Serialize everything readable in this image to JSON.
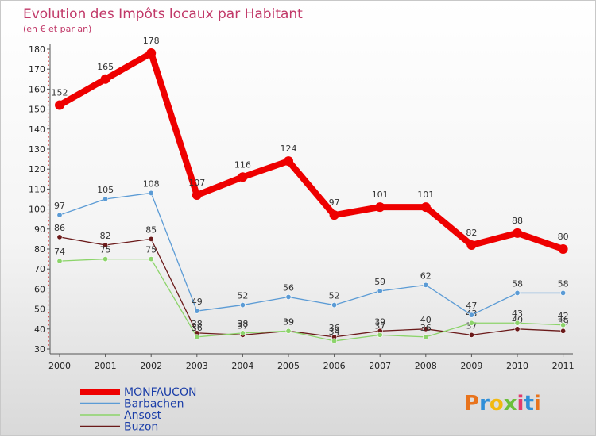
{
  "chart_data": {
    "type": "line",
    "title": "Evolution des Impôts locaux par Habitant",
    "subtitle": "(en € et par an)",
    "xlabel": "",
    "ylabel": "",
    "ylim": [
      30,
      180
    ],
    "yticks": [
      30,
      40,
      50,
      60,
      70,
      80,
      90,
      100,
      110,
      120,
      130,
      140,
      150,
      160,
      170,
      180
    ],
    "categories": [
      "2000",
      "2001",
      "2002",
      "2003",
      "2004",
      "2005",
      "2006",
      "2007",
      "2008",
      "2009",
      "2010",
      "2011"
    ],
    "legend_position": "bottom-left",
    "series": [
      {
        "name": "Buzon",
        "color": "#6b1a1a",
        "values": [
          86,
          82,
          85,
          38,
          37,
          39,
          36,
          39,
          40,
          37,
          40,
          39
        ],
        "labels": [
          "86",
          "82",
          "85",
          "38",
          "37",
          "39",
          "36",
          "39",
          "40",
          "37",
          "40",
          "39"
        ]
      },
      {
        "name": "Ansost",
        "color": "#8cd46a",
        "values": [
          74,
          75,
          75,
          36,
          38,
          39,
          34,
          37,
          36,
          43,
          43,
          42
        ],
        "labels": [
          "74",
          "75",
          "75",
          "36",
          "38",
          "39",
          "34",
          "37",
          "36",
          "43",
          "43",
          "42"
        ]
      },
      {
        "name": "Barbachen",
        "color": "#5b9bd5",
        "values": [
          97,
          105,
          108,
          49,
          52,
          56,
          52,
          59,
          62,
          47,
          58,
          58
        ],
        "labels": [
          "97",
          "105",
          "108",
          "49",
          "52",
          "56",
          "52",
          "59",
          "62",
          "47",
          "58",
          "58"
        ]
      },
      {
        "name": "MONFAUCON",
        "color": "#ee0000",
        "values": [
          152,
          165,
          178,
          107,
          116,
          124,
          97,
          101,
          101,
          82,
          88,
          80
        ],
        "labels": [
          "152",
          "165",
          "178",
          "107",
          "116",
          "124",
          "97",
          "101",
          "101",
          "82",
          "88",
          "80"
        ]
      }
    ],
    "legend_order": [
      "MONFAUCON",
      "Barbachen",
      "Ansost",
      "Buzon"
    ]
  },
  "branding": {
    "logo_text": "Proxiti",
    "logo_colors": [
      "#e8731c",
      "#2f8fd8",
      "#f2b90f",
      "#6cbf3a",
      "#e23b6c",
      "#2f8fd8",
      "#e8731c"
    ]
  }
}
